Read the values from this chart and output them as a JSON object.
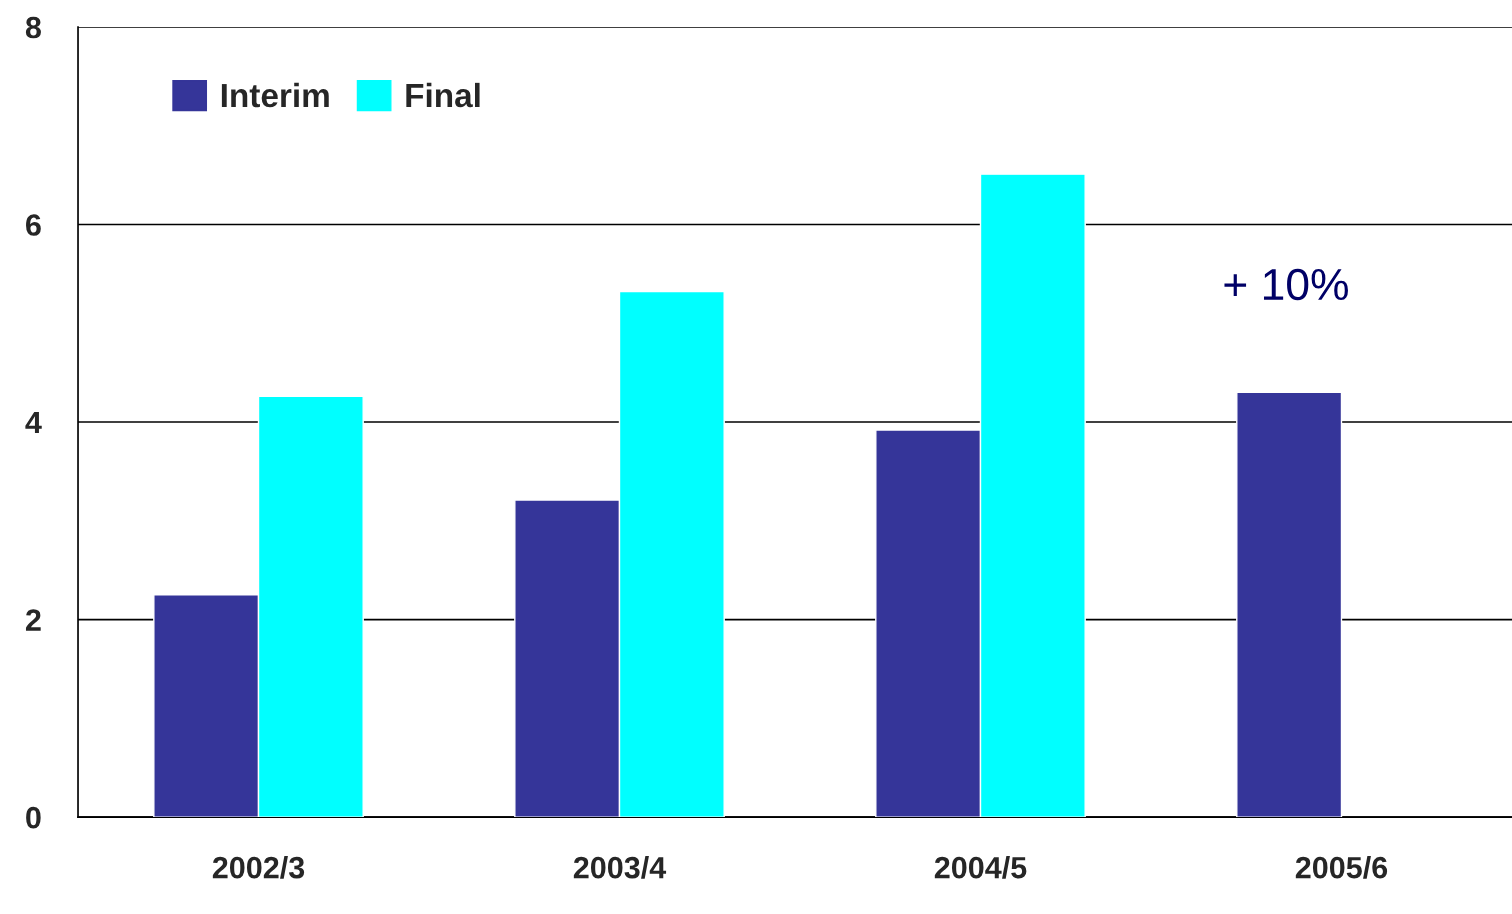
{
  "chart_data": {
    "type": "bar",
    "categories": [
      "2002/3",
      "2003/4",
      "2004/5",
      "2005/6"
    ],
    "series": [
      {
        "name": "Interim",
        "color": "#353599",
        "values": [
          2.25,
          3.21,
          3.92,
          4.3
        ]
      },
      {
        "name": "Final",
        "color": "#00ffff",
        "values": [
          4.26,
          5.32,
          6.51,
          null
        ]
      }
    ],
    "ylim": [
      0,
      8
    ],
    "yticks": [
      0,
      2,
      4,
      6,
      8
    ],
    "grid": "y",
    "legend": "top left",
    "annotations": [
      {
        "text": "+ 10%",
        "x": "2005/6",
        "y": 4.3
      }
    ]
  }
}
